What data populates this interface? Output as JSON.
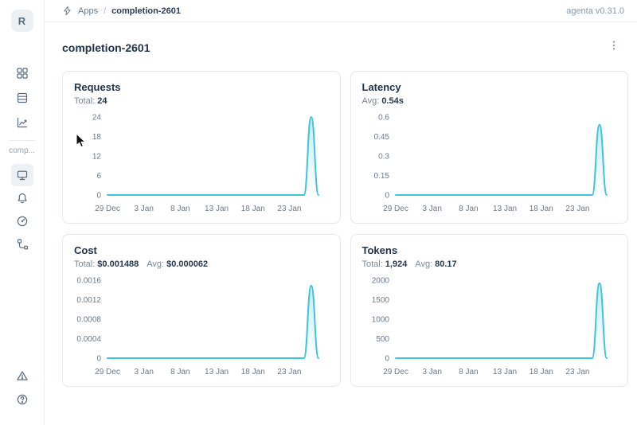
{
  "header": {
    "breadcrumb": {
      "section": "Apps",
      "separator": "/",
      "current": "completion-2601"
    },
    "version": "agenta v0.31.0"
  },
  "sidebar": {
    "avatar_letter": "R",
    "workspace_label": "comp...",
    "top_icons": [
      "apps-grid",
      "registry-table",
      "analytics-chart"
    ],
    "app_icons": [
      "overview-monitor",
      "notifications-bell",
      "observability-gauge",
      "traces-tree"
    ],
    "footer_icons": [
      "alert-triangle",
      "help-circle"
    ]
  },
  "page": {
    "title": "completion-2601"
  },
  "colors": {
    "line": "#3FC3DE",
    "text_dark": "#22334A",
    "text_gray": "#7B8794",
    "card_border": "#E5E8EC"
  },
  "chart_data": [
    {
      "type": "area",
      "title": "Requests",
      "stats": [
        {
          "label": "Total:",
          "value": "24"
        }
      ],
      "x_tick_labels": [
        "29 Dec",
        "3 Jan",
        "8 Jan",
        "13 Jan",
        "18 Jan",
        "23 Jan"
      ],
      "x_tick_indices": [
        0,
        5,
        10,
        15,
        20,
        25
      ],
      "values": [
        0,
        0,
        0,
        0,
        0,
        0,
        0,
        0,
        0,
        0,
        0,
        0,
        0,
        0,
        0,
        0,
        0,
        0,
        0,
        0,
        0,
        0,
        0,
        0,
        0,
        0,
        0,
        0,
        24,
        0
      ],
      "y_ticks": [
        0,
        6,
        12,
        18,
        24
      ],
      "y_tick_labels": [
        "0",
        "6",
        "12",
        "18",
        "24"
      ],
      "ylim": [
        0,
        24
      ],
      "legend": "none",
      "grid": false
    },
    {
      "type": "area",
      "title": "Latency",
      "stats": [
        {
          "label": "Avg:",
          "value": "0.54s"
        }
      ],
      "x_tick_labels": [
        "29 Dec",
        "3 Jan",
        "8 Jan",
        "13 Jan",
        "18 Jan",
        "23 Jan"
      ],
      "x_tick_indices": [
        0,
        5,
        10,
        15,
        20,
        25
      ],
      "values": [
        0,
        0,
        0,
        0,
        0,
        0,
        0,
        0,
        0,
        0,
        0,
        0,
        0,
        0,
        0,
        0,
        0,
        0,
        0,
        0,
        0,
        0,
        0,
        0,
        0,
        0,
        0,
        0,
        0.54,
        0
      ],
      "y_ticks": [
        0,
        0.15,
        0.3,
        0.45,
        0.6
      ],
      "y_tick_labels": [
        "0",
        "0.15",
        "0.3",
        "0.45",
        "0.6"
      ],
      "ylim": [
        0,
        0.6
      ],
      "legend": "none",
      "grid": false
    },
    {
      "type": "area",
      "title": "Cost",
      "stats": [
        {
          "label": "Total:",
          "value": "$0.001488"
        },
        {
          "label": "Avg:",
          "value": "$0.000062"
        }
      ],
      "x_tick_labels": [
        "29 Dec",
        "3 Jan",
        "8 Jan",
        "13 Jan",
        "18 Jan",
        "23 Jan"
      ],
      "x_tick_indices": [
        0,
        5,
        10,
        15,
        20,
        25
      ],
      "values": [
        0,
        0,
        0,
        0,
        0,
        0,
        0,
        0,
        0,
        0,
        0,
        0,
        0,
        0,
        0,
        0,
        0,
        0,
        0,
        0,
        0,
        0,
        0,
        0,
        0,
        0,
        0,
        0,
        0.001488,
        0
      ],
      "y_ticks": [
        0,
        0.0004,
        0.0008,
        0.0012,
        0.0016
      ],
      "y_tick_labels": [
        "0",
        "0.0004",
        "0.0008",
        "0.0012",
        "0.0016"
      ],
      "ylim": [
        0,
        0.0016
      ],
      "legend": "none",
      "grid": false
    },
    {
      "type": "area",
      "title": "Tokens",
      "stats": [
        {
          "label": "Total:",
          "value": "1,924"
        },
        {
          "label": "Avg:",
          "value": "80.17"
        }
      ],
      "x_tick_labels": [
        "29 Dec",
        "3 Jan",
        "8 Jan",
        "13 Jan",
        "18 Jan",
        "23 Jan"
      ],
      "x_tick_indices": [
        0,
        5,
        10,
        15,
        20,
        25
      ],
      "values": [
        0,
        0,
        0,
        0,
        0,
        0,
        0,
        0,
        0,
        0,
        0,
        0,
        0,
        0,
        0,
        0,
        0,
        0,
        0,
        0,
        0,
        0,
        0,
        0,
        0,
        0,
        0,
        0,
        1924,
        0
      ],
      "y_ticks": [
        0,
        500,
        1000,
        1500,
        2000
      ],
      "y_tick_labels": [
        "0",
        "500",
        "1000",
        "1500",
        "2000"
      ],
      "ylim": [
        0,
        2000
      ],
      "legend": "none",
      "grid": false
    }
  ]
}
